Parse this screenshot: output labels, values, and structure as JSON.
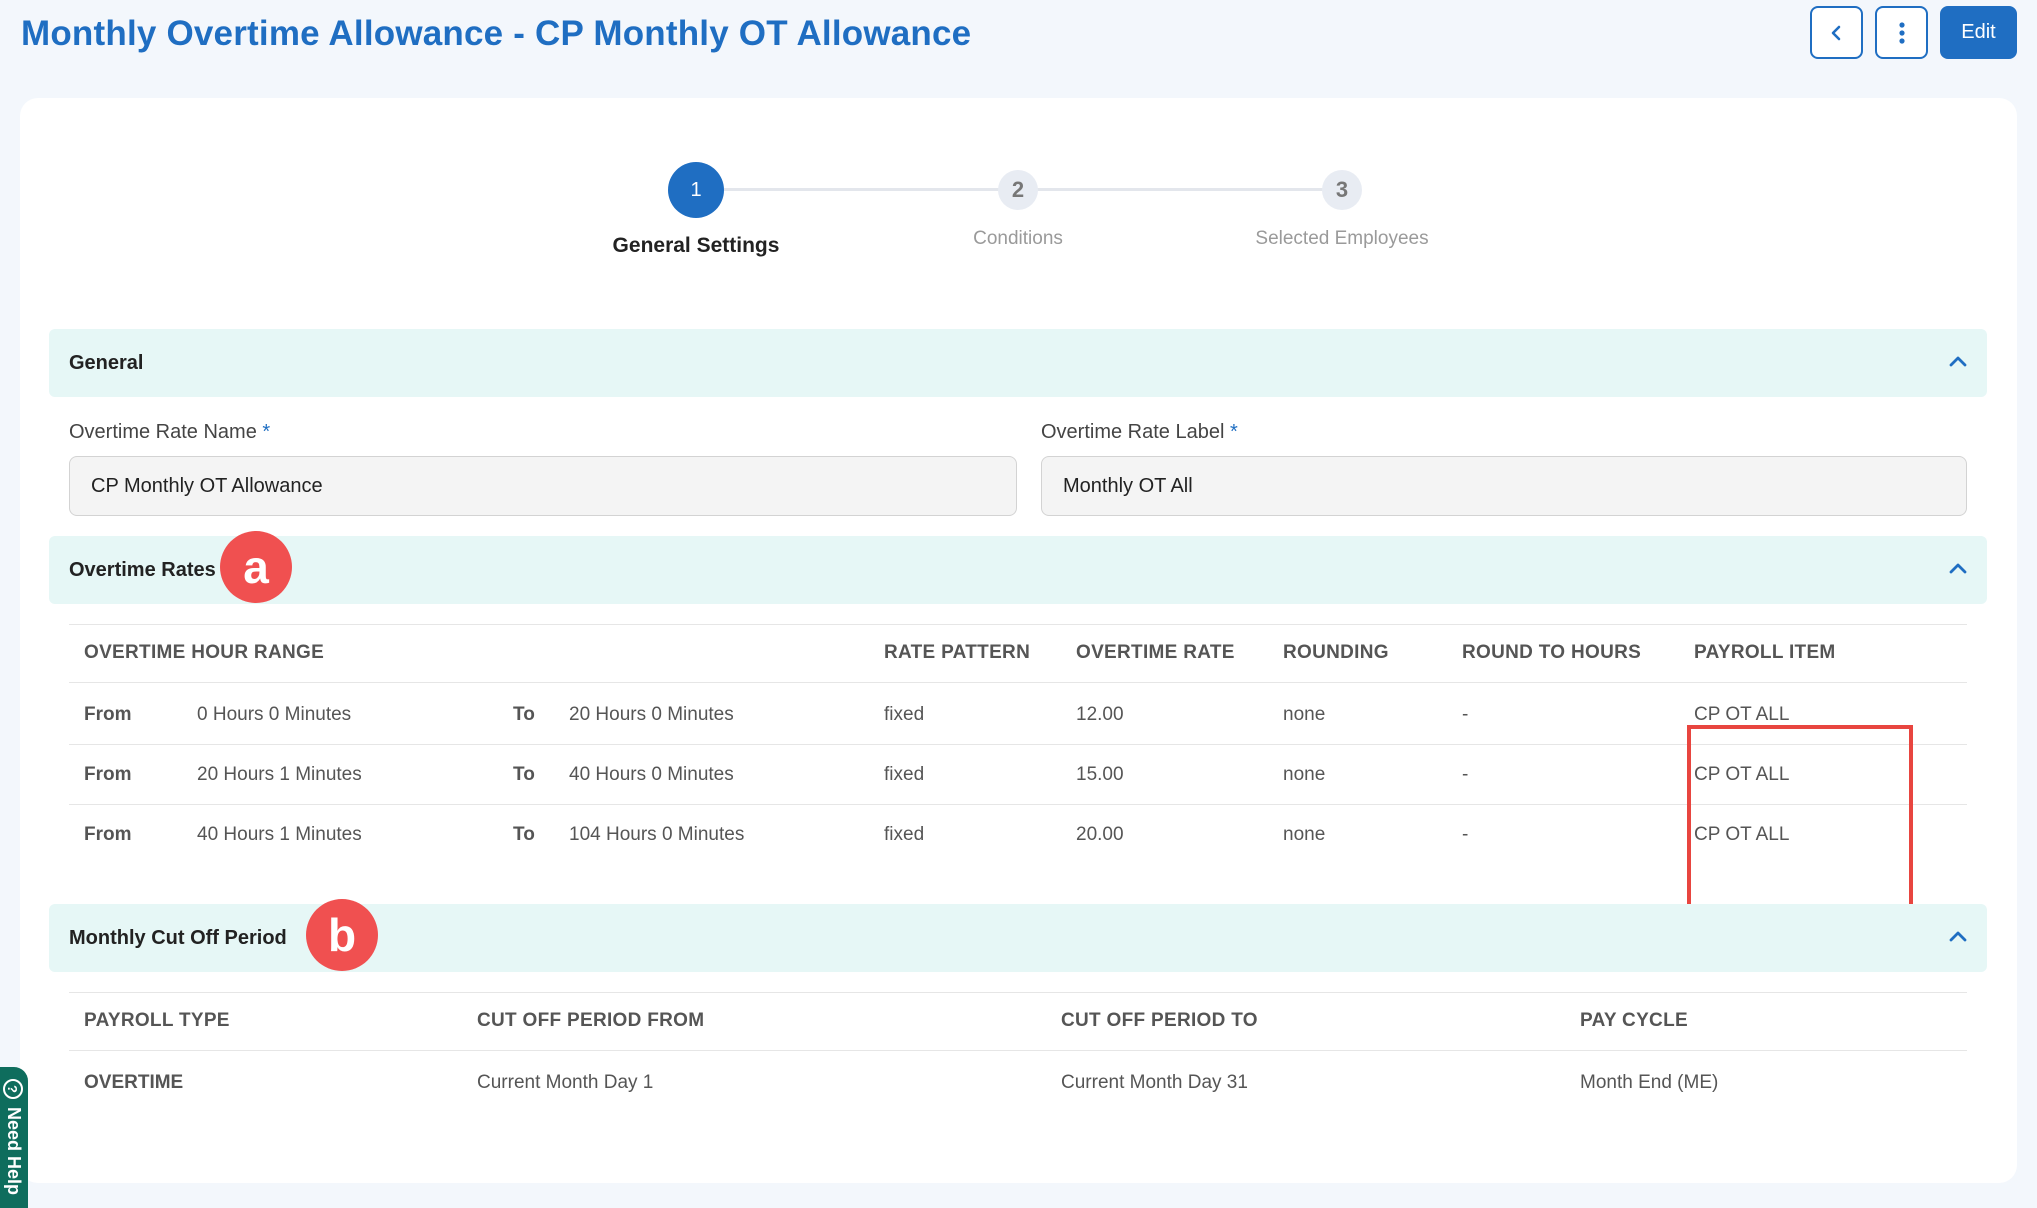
{
  "page": {
    "title": "Monthly Overtime Allowance - CP Monthly OT Allowance",
    "edit_label": "Edit"
  },
  "stepper": {
    "steps": [
      {
        "number": "1",
        "label": "General Settings",
        "state": "active"
      },
      {
        "number": "2",
        "label": "Conditions",
        "state": "pending"
      },
      {
        "number": "3",
        "label": "Selected Employees",
        "state": "pending"
      }
    ]
  },
  "general": {
    "title": "General",
    "rate_name_label": "Overtime Rate Name",
    "rate_name_value": "CP Monthly OT Allowance",
    "rate_label_label": "Overtime Rate Label",
    "rate_label_value": "Monthly OT All",
    "required_mark": "*"
  },
  "overtime_rates": {
    "title": "Overtime Rates",
    "badge": "a",
    "headers": {
      "hour_range": "OVERTIME HOUR RANGE",
      "rate_pattern": "RATE PATTERN",
      "overtime_rate": "OVERTIME RATE",
      "rounding": "ROUNDING",
      "round_to_hours": "ROUND TO HOURS",
      "payroll_item": "PAYROLL ITEM"
    },
    "rows": [
      {
        "from_label": "From",
        "from": "0 Hours 0 Minutes",
        "to_label": "To",
        "to": "20 Hours 0 Minutes",
        "rate_pattern": "fixed",
        "overtime_rate": "12.00",
        "rounding": "none",
        "round_to_hours": "-",
        "payroll_item": "CP OT ALL"
      },
      {
        "from_label": "From",
        "from": "20 Hours 1 Minutes",
        "to_label": "To",
        "to": "40 Hours 0 Minutes",
        "rate_pattern": "fixed",
        "overtime_rate": "15.00",
        "rounding": "none",
        "round_to_hours": "-",
        "payroll_item": "CP OT ALL"
      },
      {
        "from_label": "From",
        "from": "40 Hours 1 Minutes",
        "to_label": "To",
        "to": "104 Hours 0 Minutes",
        "rate_pattern": "fixed",
        "overtime_rate": "20.00",
        "rounding": "none",
        "round_to_hours": "-",
        "payroll_item": "CP OT ALL"
      }
    ]
  },
  "cutoff": {
    "title": "Monthly Cut Off Period",
    "badge": "b",
    "headers": {
      "payroll_type": "PAYROLL TYPE",
      "from": "CUT OFF PERIOD FROM",
      "to": "CUT OFF PERIOD TO",
      "pay_cycle": "PAY CYCLE"
    },
    "rows": [
      {
        "payroll_type": "OVERTIME",
        "from": "Current Month Day 1",
        "to": "Current Month Day 31",
        "pay_cycle": "Month End (ME)"
      }
    ]
  },
  "help": {
    "label": "Need Help"
  },
  "colors": {
    "primary": "#1f6ec2",
    "section_bg": "#e6f7f6",
    "badge": "#f05050",
    "highlight": "#e8453f",
    "help_tab": "#0e6d5d"
  }
}
